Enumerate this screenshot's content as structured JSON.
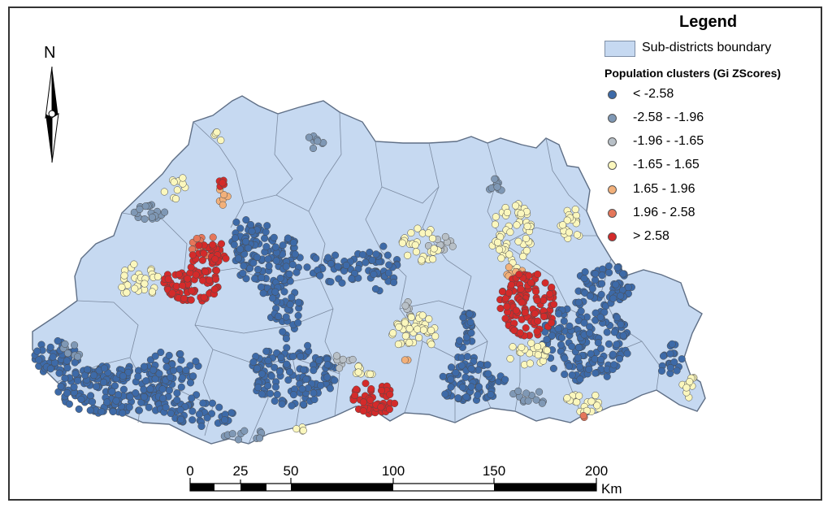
{
  "legend": {
    "title": "Legend",
    "boundary_label": "Sub-districts boundary",
    "boundary_color": "#c6d9f1",
    "clusters_title": "Population clusters (Gi ZScores)",
    "classes": [
      {
        "label": "< -2.58",
        "color": "#3d6aa8"
      },
      {
        "label": "-2.58 - -1.96",
        "color": "#7f98b5"
      },
      {
        "label": "-1.96 - -1.65",
        "color": "#b8c0c7"
      },
      {
        "label": "-1.65 - 1.65",
        "color": "#fbf7bd"
      },
      {
        "label": "1.65 - 1.96",
        "color": "#f2b07a"
      },
      {
        "label": "1.96 - 2.58",
        "color": "#e5765a"
      },
      {
        "label": "> 2.58",
        "color": "#d42a2a"
      }
    ]
  },
  "north_arrow": {
    "label": "N"
  },
  "scale_bar": {
    "ticks": [
      "0",
      "25",
      "50",
      "100",
      "150",
      "200"
    ],
    "unit": "Km"
  }
}
